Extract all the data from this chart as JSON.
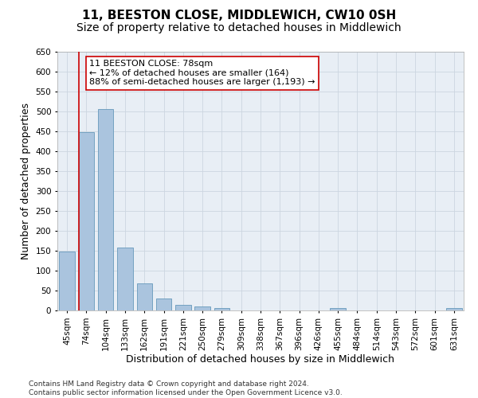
{
  "title": "11, BEESTON CLOSE, MIDDLEWICH, CW10 0SH",
  "subtitle": "Size of property relative to detached houses in Middlewich",
  "xlabel": "Distribution of detached houses by size in Middlewich",
  "ylabel": "Number of detached properties",
  "categories": [
    "45sqm",
    "74sqm",
    "104sqm",
    "133sqm",
    "162sqm",
    "191sqm",
    "221sqm",
    "250sqm",
    "279sqm",
    "309sqm",
    "338sqm",
    "367sqm",
    "396sqm",
    "426sqm",
    "455sqm",
    "484sqm",
    "514sqm",
    "543sqm",
    "572sqm",
    "601sqm",
    "631sqm"
  ],
  "values": [
    148,
    448,
    506,
    158,
    68,
    30,
    14,
    10,
    6,
    0,
    0,
    0,
    0,
    0,
    6,
    0,
    0,
    0,
    0,
    0,
    6
  ],
  "bar_color": "#aac4de",
  "bar_edge_color": "#6699bb",
  "grid_color": "#ccd5e0",
  "background_color": "#e8eef5",
  "vline_x": 1,
  "vline_color": "#cc0000",
  "annotation_box_text": "11 BEESTON CLOSE: 78sqm\n← 12% of detached houses are smaller (164)\n88% of semi-detached houses are larger (1,193) →",
  "annotation_box_color": "#cc0000",
  "ylim": [
    0,
    650
  ],
  "yticks": [
    0,
    50,
    100,
    150,
    200,
    250,
    300,
    350,
    400,
    450,
    500,
    550,
    600,
    650
  ],
  "footer": "Contains HM Land Registry data © Crown copyright and database right 2024.\nContains public sector information licensed under the Open Government Licence v3.0.",
  "title_fontsize": 11,
  "subtitle_fontsize": 10,
  "xlabel_fontsize": 9,
  "ylabel_fontsize": 9,
  "tick_fontsize": 7.5,
  "annotation_fontsize": 8,
  "footer_fontsize": 6.5
}
